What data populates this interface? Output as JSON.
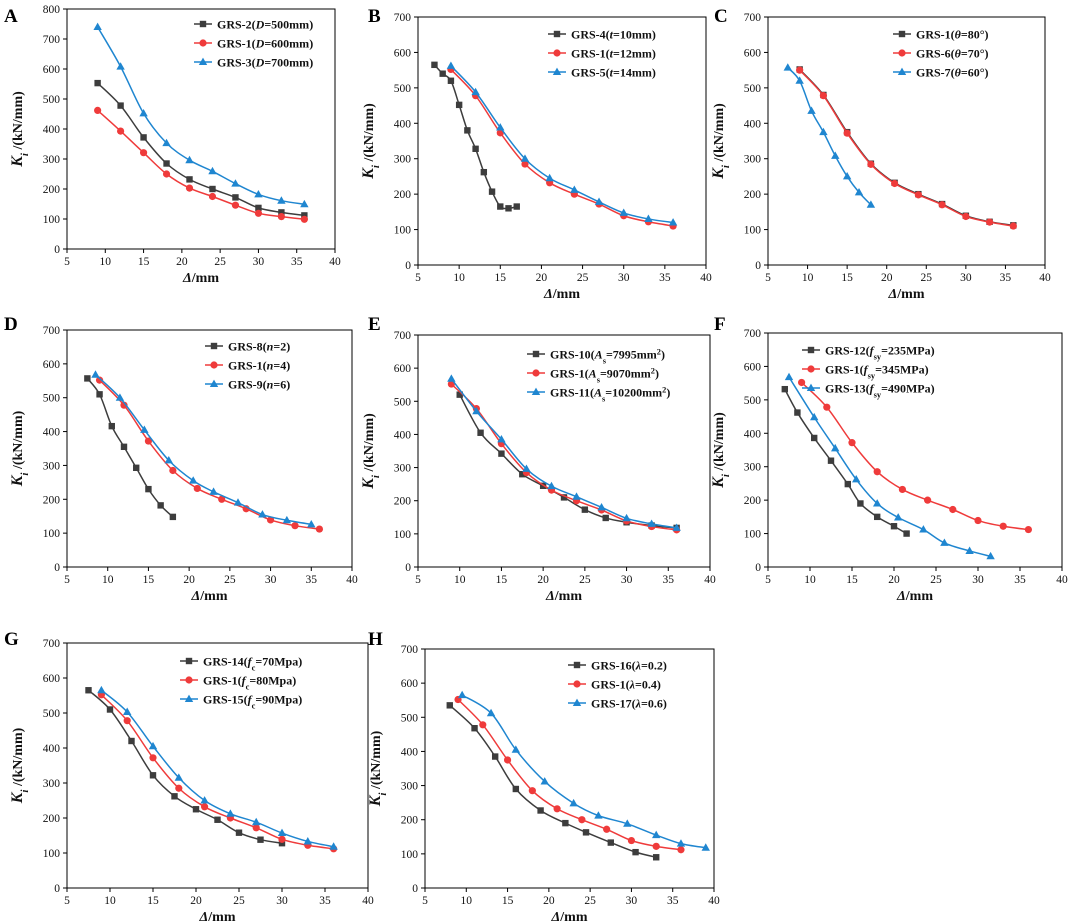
{
  "chart_data": [
    {
      "panel_label": "A",
      "type": "line",
      "xlabel": "Δ/mm",
      "ylabel": "Ki /(kN/mm)",
      "xlim": [
        5,
        40
      ],
      "ylim": [
        0,
        800
      ],
      "xticks": [
        5,
        10,
        15,
        20,
        25,
        30,
        35,
        40
      ],
      "yticks": [
        0,
        100,
        200,
        300,
        400,
        500,
        600,
        700,
        800
      ],
      "legend_position": "top-right",
      "series": [
        {
          "name": "GRS-2(D=500mm)",
          "color": "#3d3d3d",
          "marker": "square",
          "x": [
            9,
            12,
            15,
            18,
            21,
            24,
            27,
            30,
            33,
            36
          ],
          "y": [
            553,
            478,
            372,
            285,
            232,
            200,
            172,
            137,
            122,
            112
          ]
        },
        {
          "name": "GRS-1(D=600mm)",
          "color": "#ef3b3b",
          "marker": "circle",
          "x": [
            9,
            12,
            15,
            18,
            21,
            24,
            27,
            30,
            33,
            36
          ],
          "y": [
            462,
            393,
            321,
            250,
            203,
            175,
            146,
            119,
            108,
            99
          ]
        },
        {
          "name": "GRS-3(D=700mm)",
          "color": "#1f86d0",
          "marker": "triangle",
          "x": [
            9,
            12,
            15,
            18,
            21,
            24,
            27,
            30,
            33,
            36
          ],
          "y": [
            740,
            608,
            452,
            353,
            296,
            259,
            218,
            182,
            161,
            149
          ]
        }
      ]
    },
    {
      "panel_label": "B",
      "type": "line",
      "xlabel": "Δ/mm",
      "ylabel": "Ki /(kN/mm)",
      "xlim": [
        5,
        40
      ],
      "ylim": [
        0,
        700
      ],
      "xticks": [
        5,
        10,
        15,
        20,
        25,
        30,
        35,
        40
      ],
      "yticks": [
        0,
        100,
        200,
        300,
        400,
        500,
        600,
        700
      ],
      "legend_position": "top-right",
      "series": [
        {
          "name": "GRS-4(t=10mm)",
          "color": "#3d3d3d",
          "marker": "square",
          "x": [
            7,
            8,
            9,
            10,
            11,
            12,
            13,
            14,
            15,
            16,
            17
          ],
          "y": [
            565,
            540,
            520,
            452,
            380,
            328,
            262,
            207,
            165,
            160,
            165
          ]
        },
        {
          "name": "GRS-1(t=12mm)",
          "color": "#ef3b3b",
          "marker": "circle",
          "x": [
            9,
            12,
            15,
            18,
            21,
            24,
            27,
            30,
            33,
            36
          ],
          "y": [
            552,
            478,
            373,
            285,
            232,
            200,
            172,
            139,
            122,
            110
          ]
        },
        {
          "name": "GRS-5(t=14mm)",
          "color": "#1f86d0",
          "marker": "triangle",
          "x": [
            9,
            12,
            15,
            18,
            21,
            24,
            27,
            30,
            33,
            36
          ],
          "y": [
            562,
            488,
            388,
            300,
            245,
            212,
            178,
            147,
            130,
            120
          ]
        }
      ]
    },
    {
      "panel_label": "C",
      "type": "line",
      "xlabel": "Δ/mm",
      "ylabel": "Ki /(kN/mm)",
      "xlim": [
        5,
        40
      ],
      "ylim": [
        0,
        700
      ],
      "xticks": [
        5,
        10,
        15,
        20,
        25,
        30,
        35,
        40
      ],
      "yticks": [
        0,
        100,
        200,
        300,
        400,
        500,
        600,
        700
      ],
      "legend_position": "top-right",
      "series": [
        {
          "name": "GRS-1(θ=80°)",
          "color": "#3d3d3d",
          "marker": "square",
          "x": [
            9,
            12,
            15,
            18,
            21,
            24,
            27,
            30,
            33,
            36
          ],
          "y": [
            552,
            480,
            375,
            286,
            232,
            200,
            172,
            139,
            122,
            112
          ]
        },
        {
          "name": "GRS-6(θ=70°)",
          "color": "#ef3b3b",
          "marker": "circle",
          "x": [
            9,
            12,
            15,
            18,
            21,
            24,
            27,
            30,
            33,
            36
          ],
          "y": [
            550,
            478,
            372,
            284,
            230,
            198,
            170,
            137,
            121,
            110
          ]
        },
        {
          "name": "GRS-7(θ=60°)",
          "color": "#1f86d0",
          "marker": "triangle",
          "x": [
            7.5,
            9,
            10.5,
            12,
            13.5,
            15,
            16.5,
            18
          ],
          "y": [
            557,
            520,
            435,
            375,
            308,
            250,
            205,
            170
          ]
        }
      ]
    },
    {
      "panel_label": "D",
      "type": "line",
      "xlabel": "Δ/mm",
      "ylabel": "Ki /(kN/mm)",
      "xlim": [
        5,
        40
      ],
      "ylim": [
        0,
        700
      ],
      "xticks": [
        5,
        10,
        15,
        20,
        25,
        30,
        35,
        40
      ],
      "yticks": [
        0,
        100,
        200,
        300,
        400,
        500,
        600,
        700
      ],
      "legend_position": "top-right",
      "series": [
        {
          "name": "GRS-8(n=2)",
          "color": "#3d3d3d",
          "marker": "square",
          "x": [
            7.5,
            9,
            10.5,
            12,
            13.5,
            15,
            16.5,
            18
          ],
          "y": [
            557,
            510,
            416,
            355,
            293,
            230,
            182,
            148
          ]
        },
        {
          "name": "GRS-1(n=4)",
          "color": "#ef3b3b",
          "marker": "circle",
          "x": [
            9,
            12,
            15,
            18,
            21,
            24,
            27,
            30,
            33,
            36
          ],
          "y": [
            552,
            478,
            372,
            285,
            232,
            200,
            172,
            139,
            122,
            112
          ]
        },
        {
          "name": "GRS-9(n=6)",
          "color": "#1f86d0",
          "marker": "triangle",
          "x": [
            8.5,
            11.5,
            14.5,
            17.5,
            20.5,
            23,
            26,
            29,
            32,
            35
          ],
          "y": [
            568,
            500,
            405,
            315,
            255,
            222,
            190,
            155,
            138,
            126
          ]
        }
      ]
    },
    {
      "panel_label": "E",
      "type": "line",
      "xlabel": "Δ/mm",
      "ylabel": "Ki /(kN/mm)",
      "xlim": [
        5,
        40
      ],
      "ylim": [
        0,
        700
      ],
      "xticks": [
        5,
        10,
        15,
        20,
        25,
        30,
        35,
        40
      ],
      "yticks": [
        0,
        100,
        200,
        300,
        400,
        500,
        600,
        700
      ],
      "legend_position": "top-right",
      "series": [
        {
          "name": "GRS-10(As=7995mm2)",
          "color": "#3d3d3d",
          "marker": "square",
          "x": [
            10,
            12.5,
            15,
            17.5,
            20,
            22.5,
            25,
            27.5,
            30,
            33,
            36
          ],
          "y": [
            520,
            405,
            342,
            280,
            245,
            210,
            173,
            148,
            135,
            125,
            118
          ]
        },
        {
          "name": "GRS-1(As=9070mm2)",
          "color": "#ef3b3b",
          "marker": "circle",
          "x": [
            9,
            12,
            15,
            18,
            21,
            24,
            27,
            30,
            33,
            36
          ],
          "y": [
            552,
            478,
            372,
            285,
            232,
            200,
            172,
            139,
            122,
            112
          ]
        },
        {
          "name": "GRS-11(As=10200mm2)",
          "color": "#1f86d0",
          "marker": "triangle",
          "x": [
            9,
            12,
            15,
            18,
            21,
            24,
            27,
            30,
            33,
            36
          ],
          "y": [
            568,
            470,
            385,
            296,
            244,
            212,
            180,
            147,
            130,
            118
          ]
        }
      ]
    },
    {
      "panel_label": "F",
      "type": "line",
      "xlabel": "Δ/mm",
      "ylabel": "Ki /(kN/mm)",
      "xlim": [
        5,
        40
      ],
      "ylim": [
        0,
        700
      ],
      "xticks": [
        5,
        10,
        15,
        20,
        25,
        30,
        35,
        40
      ],
      "yticks": [
        0,
        100,
        200,
        300,
        400,
        500,
        600,
        700
      ],
      "legend_position": "top-right",
      "series": [
        {
          "name": "GRS-12(fsy=235MPa)",
          "color": "#3d3d3d",
          "marker": "square",
          "x": [
            7,
            8.5,
            10.5,
            12.5,
            14.5,
            16,
            18,
            20,
            21.5
          ],
          "y": [
            532,
            462,
            386,
            318,
            248,
            190,
            150,
            122,
            100
          ]
        },
        {
          "name": "GRS-1(fsy=345MPa)",
          "color": "#ef3b3b",
          "marker": "circle",
          "x": [
            9,
            12,
            15,
            18,
            21,
            24,
            27,
            30,
            33,
            36
          ],
          "y": [
            552,
            478,
            372,
            285,
            232,
            200,
            172,
            139,
            122,
            112
          ]
        },
        {
          "name": "GRS-13(fsy=490MPa)",
          "color": "#1f86d0",
          "marker": "triangle",
          "x": [
            7.5,
            10.5,
            13,
            15.5,
            18,
            20.5,
            23.5,
            26,
            29,
            31.5
          ],
          "y": [
            568,
            448,
            355,
            262,
            190,
            148,
            112,
            72,
            48,
            32
          ]
        }
      ]
    },
    {
      "panel_label": "G",
      "type": "line",
      "xlabel": "Δ/mm",
      "ylabel": "Ki /(kN/mm)",
      "xlim": [
        5,
        40
      ],
      "ylim": [
        0,
        700
      ],
      "xticks": [
        5,
        10,
        15,
        20,
        25,
        30,
        35,
        40
      ],
      "yticks": [
        0,
        100,
        200,
        300,
        400,
        500,
        600,
        700
      ],
      "legend_position": "top-right",
      "series": [
        {
          "name": "GRS-14(fc=70Mpa)",
          "color": "#3d3d3d",
          "marker": "square",
          "x": [
            7.5,
            10,
            12.5,
            15,
            17.5,
            20,
            22.5,
            25,
            27.5,
            30
          ],
          "y": [
            565,
            510,
            420,
            322,
            262,
            225,
            195,
            158,
            138,
            128
          ]
        },
        {
          "name": "GRS-1(fc=80Mpa)",
          "color": "#ef3b3b",
          "marker": "circle",
          "x": [
            9,
            12,
            15,
            18,
            21,
            24,
            27,
            30,
            33,
            36
          ],
          "y": [
            552,
            478,
            372,
            285,
            232,
            200,
            172,
            139,
            122,
            112
          ]
        },
        {
          "name": "GRS-15(fc=90Mpa)",
          "color": "#1f86d0",
          "marker": "triangle",
          "x": [
            9,
            12,
            15,
            18,
            21,
            24,
            27,
            30,
            33,
            36
          ],
          "y": [
            565,
            503,
            405,
            315,
            250,
            212,
            188,
            157,
            133,
            118
          ]
        }
      ]
    },
    {
      "panel_label": "H",
      "type": "line",
      "xlabel": "Δ/mm",
      "ylabel": "Ki /(kN/mm)",
      "xlim": [
        5,
        40
      ],
      "ylim": [
        0,
        700
      ],
      "xticks": [
        5,
        10,
        15,
        20,
        25,
        30,
        35,
        40
      ],
      "yticks": [
        0,
        100,
        200,
        300,
        400,
        500,
        600,
        700
      ],
      "legend_position": "top-right",
      "series": [
        {
          "name": "GRS-16(λ=0.2)",
          "color": "#3d3d3d",
          "marker": "square",
          "x": [
            8,
            11,
            13.5,
            16,
            19,
            22,
            24.5,
            27.5,
            30.5,
            33
          ],
          "y": [
            535,
            468,
            385,
            290,
            227,
            190,
            163,
            133,
            105,
            90
          ]
        },
        {
          "name": "GRS-1(λ=0.4)",
          "color": "#ef3b3b",
          "marker": "circle",
          "x": [
            9,
            12,
            15,
            18,
            21,
            24,
            27,
            30,
            33,
            36
          ],
          "y": [
            552,
            478,
            375,
            285,
            232,
            200,
            172,
            139,
            122,
            112
          ]
        },
        {
          "name": "GRS-17(λ=0.6)",
          "color": "#1f86d0",
          "marker": "triangle",
          "x": [
            9.5,
            13,
            16,
            19.5,
            23,
            26,
            29.5,
            33,
            36,
            39
          ],
          "y": [
            565,
            512,
            405,
            312,
            248,
            212,
            188,
            155,
            130,
            118
          ]
        }
      ]
    }
  ]
}
